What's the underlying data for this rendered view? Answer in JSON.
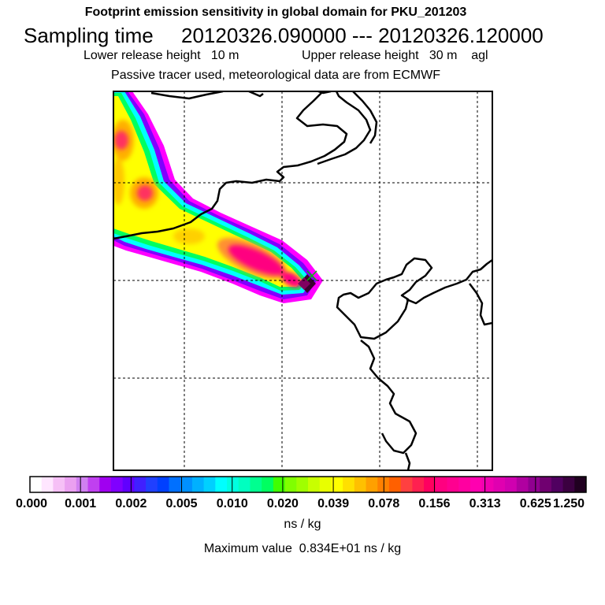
{
  "header": {
    "title": "Footprint emission sensitivity in global domain for PKU_201203",
    "sampling_label": "Sampling time",
    "sampling_range": "20120326.090000 --- 20120326.120000",
    "lower_release": "Lower release height   10 m",
    "upper_release": "Upper release height   30 m    agl",
    "tracer_note": "Passive tracer used, meteorological data are from ECMWF"
  },
  "map": {
    "grid": true,
    "grid_style": "dashed",
    "release_marker": "x-marker-icon",
    "plume_colors": [
      "#ff00ff",
      "#00ffff",
      "#00ff60",
      "#ffff00",
      "#ffb000",
      "#ff5070",
      "#ff0080",
      "#3b0030"
    ]
  },
  "colorbar": {
    "tick_labels": [
      "0.000",
      "0.001",
      "0.002",
      "0.005",
      "0.010",
      "0.020",
      "0.039",
      "0.078",
      "0.156",
      "0.313",
      "0.625",
      "1.250"
    ],
    "units": "ns / kg",
    "colors": [
      "#ffffff",
      "#ffe6ff",
      "#f6c0f6",
      "#eaa0f0",
      "#d080f0",
      "#c040f0",
      "#a000f0",
      "#8000ff",
      "#6000ff",
      "#4020ff",
      "#2040ff",
      "#0040ff",
      "#0070ff",
      "#0090ff",
      "#00b0ff",
      "#00d0ff",
      "#00ffff",
      "#00ffe0",
      "#00ffc0",
      "#00ff90",
      "#00ff60",
      "#40ff00",
      "#80ff00",
      "#a0ff00",
      "#c8ff00",
      "#e8ff00",
      "#ffff00",
      "#ffe000",
      "#ffc000",
      "#ffa000",
      "#ff8000",
      "#ff6000",
      "#ff4040",
      "#ff2050",
      "#ff0060",
      "#ff0080",
      "#ff0090",
      "#ff00a0",
      "#ff00b0",
      "#f000b0",
      "#e000b0",
      "#d000b0",
      "#b000a0",
      "#900090",
      "#700070",
      "#500060",
      "#3b0040",
      "#200020"
    ]
  },
  "footer": {
    "max_value": "Maximum value  0.834E+01 ns / kg"
  }
}
